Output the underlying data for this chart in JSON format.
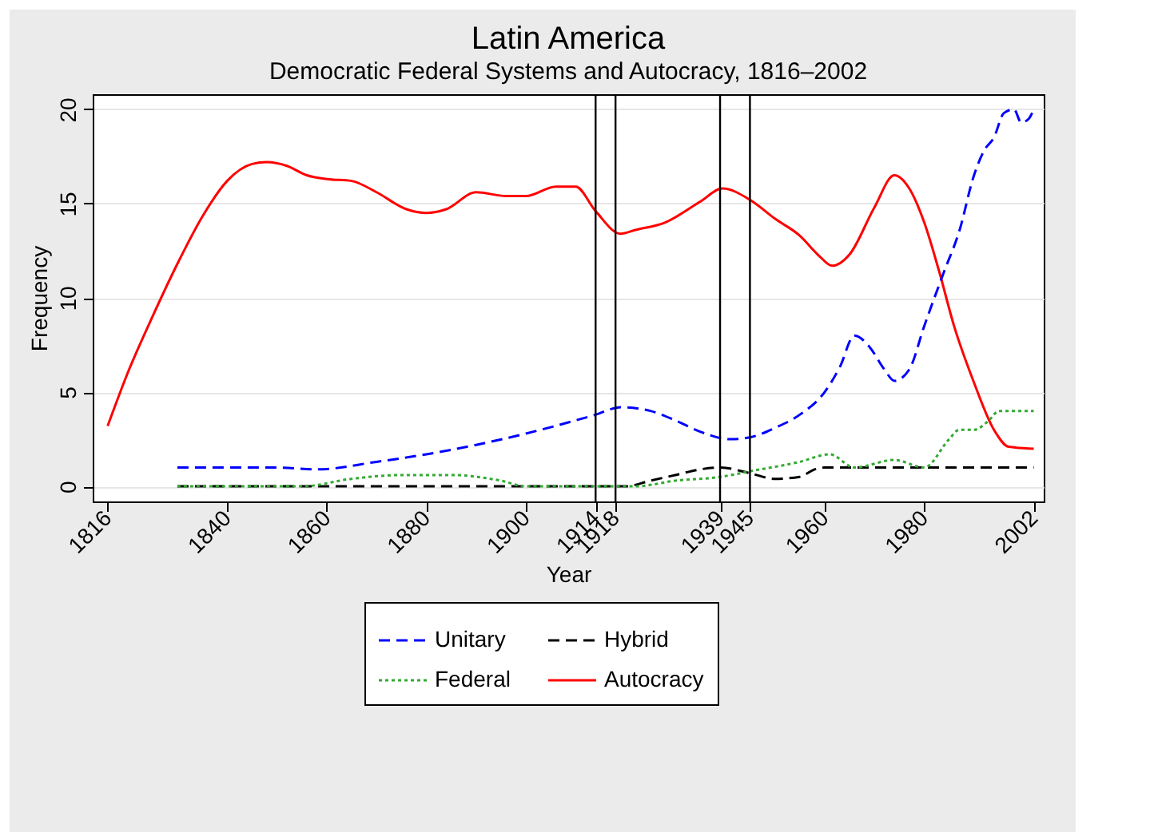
{
  "chart_data": {
    "type": "line",
    "title": "Latin America",
    "subtitle": "Democratic Federal Systems and Autocracy, 1816–2002",
    "xlabel": "Year",
    "ylabel": "Frequency",
    "xlim": [
      1813,
      2004
    ],
    "ylim": [
      -0.8,
      20.8
    ],
    "xticks": [
      1816,
      1840,
      1860,
      1880,
      1900,
      1914,
      1918,
      1939,
      1945,
      1960,
      1980,
      2002
    ],
    "yticks": [
      0,
      5,
      10,
      15,
      20
    ],
    "grid": "y",
    "legend": "bottom",
    "ref_lines": [
      {
        "axis": "x",
        "value": 1914,
        "color": "#000000"
      },
      {
        "axis": "x",
        "value": 1918,
        "color": "#000000"
      },
      {
        "axis": "x",
        "value": 1939,
        "color": "#000000"
      },
      {
        "axis": "x",
        "value": 1945,
        "color": "#000000"
      }
    ],
    "series": [
      {
        "name": "Unitary",
        "color": "#0000ff",
        "line_style": "dashed",
        "x": [
          1830,
          1850,
          1858,
          1870,
          1880,
          1890,
          1900,
          1910,
          1914,
          1919,
          1925,
          1930,
          1935,
          1941,
          1945,
          1950,
          1955,
          1960,
          1963,
          1966,
          1969,
          1972,
          1974,
          1977,
          1980,
          1984,
          1987,
          1990,
          1992,
          1994,
          1996,
          1998,
          1999.5,
          2001,
          2002
        ],
        "values": [
          1.0,
          1.0,
          0.9,
          1.3,
          1.7,
          2.2,
          2.8,
          3.5,
          3.8,
          4.2,
          4.0,
          3.5,
          2.9,
          2.5,
          2.6,
          3.1,
          3.8,
          5.0,
          6.3,
          8.0,
          7.4,
          6.2,
          5.6,
          6.2,
          8.5,
          11.4,
          13.5,
          16.5,
          17.8,
          18.5,
          19.8,
          20.0,
          19.3,
          19.5,
          20.0
        ]
      },
      {
        "name": "Federal",
        "color": "#33aa33",
        "line_style": "dotted",
        "x": [
          1830,
          1855,
          1865,
          1875,
          1885,
          1895,
          1900,
          1922,
          1930,
          1939,
          1945,
          1955,
          1961,
          1966,
          1974,
          1980,
          1985,
          1987,
          1990,
          1993,
          1995,
          2002
        ],
        "values": [
          0,
          0,
          0.4,
          0.6,
          0.6,
          0.3,
          0,
          0,
          0.3,
          0.5,
          0.8,
          1.3,
          1.7,
          1.0,
          1.4,
          1.0,
          2.5,
          3.0,
          3.0,
          3.5,
          4.0,
          4.0
        ]
      },
      {
        "name": "Hybrid",
        "color": "#000000",
        "line_style": "dashed",
        "x": [
          1830,
          1920,
          1925,
          1930,
          1935,
          1939,
          1945,
          1950,
          1955,
          1958,
          1960,
          2002
        ],
        "values": [
          0,
          0,
          0.3,
          0.6,
          0.9,
          1.0,
          0.7,
          0.4,
          0.5,
          0.9,
          1.0,
          1.0
        ]
      },
      {
        "name": "Autocracy",
        "color": "#ff0000",
        "line_style": "solid",
        "x": [
          1816,
          1820,
          1825,
          1830,
          1835,
          1840,
          1845,
          1848,
          1852,
          1856,
          1860,
          1865,
          1870,
          1876,
          1880,
          1884,
          1890,
          1896,
          1900,
          1906,
          1910,
          1914,
          1919,
          1922,
          1928,
          1935,
          1939.5,
          1945,
          1950,
          1955,
          1959,
          1961.5,
          1965,
          1970,
          1974,
          1977,
          1980,
          1983,
          1986,
          1990,
          1994,
          1997,
          2002
        ],
        "values": [
          3.2,
          6.0,
          9.0,
          11.8,
          14.3,
          16.2,
          17.1,
          17.2,
          17.0,
          16.5,
          16.3,
          16.2,
          15.6,
          14.7,
          14.5,
          14.7,
          15.6,
          15.4,
          15.4,
          15.9,
          15.9,
          14.6,
          13.4,
          13.6,
          14.0,
          15.1,
          15.8,
          15.2,
          14.2,
          13.3,
          12.2,
          11.7,
          12.3,
          14.8,
          16.5,
          15.8,
          14.0,
          11.4,
          8.5,
          5.5,
          3.0,
          2.1,
          2.0
        ]
      }
    ]
  }
}
